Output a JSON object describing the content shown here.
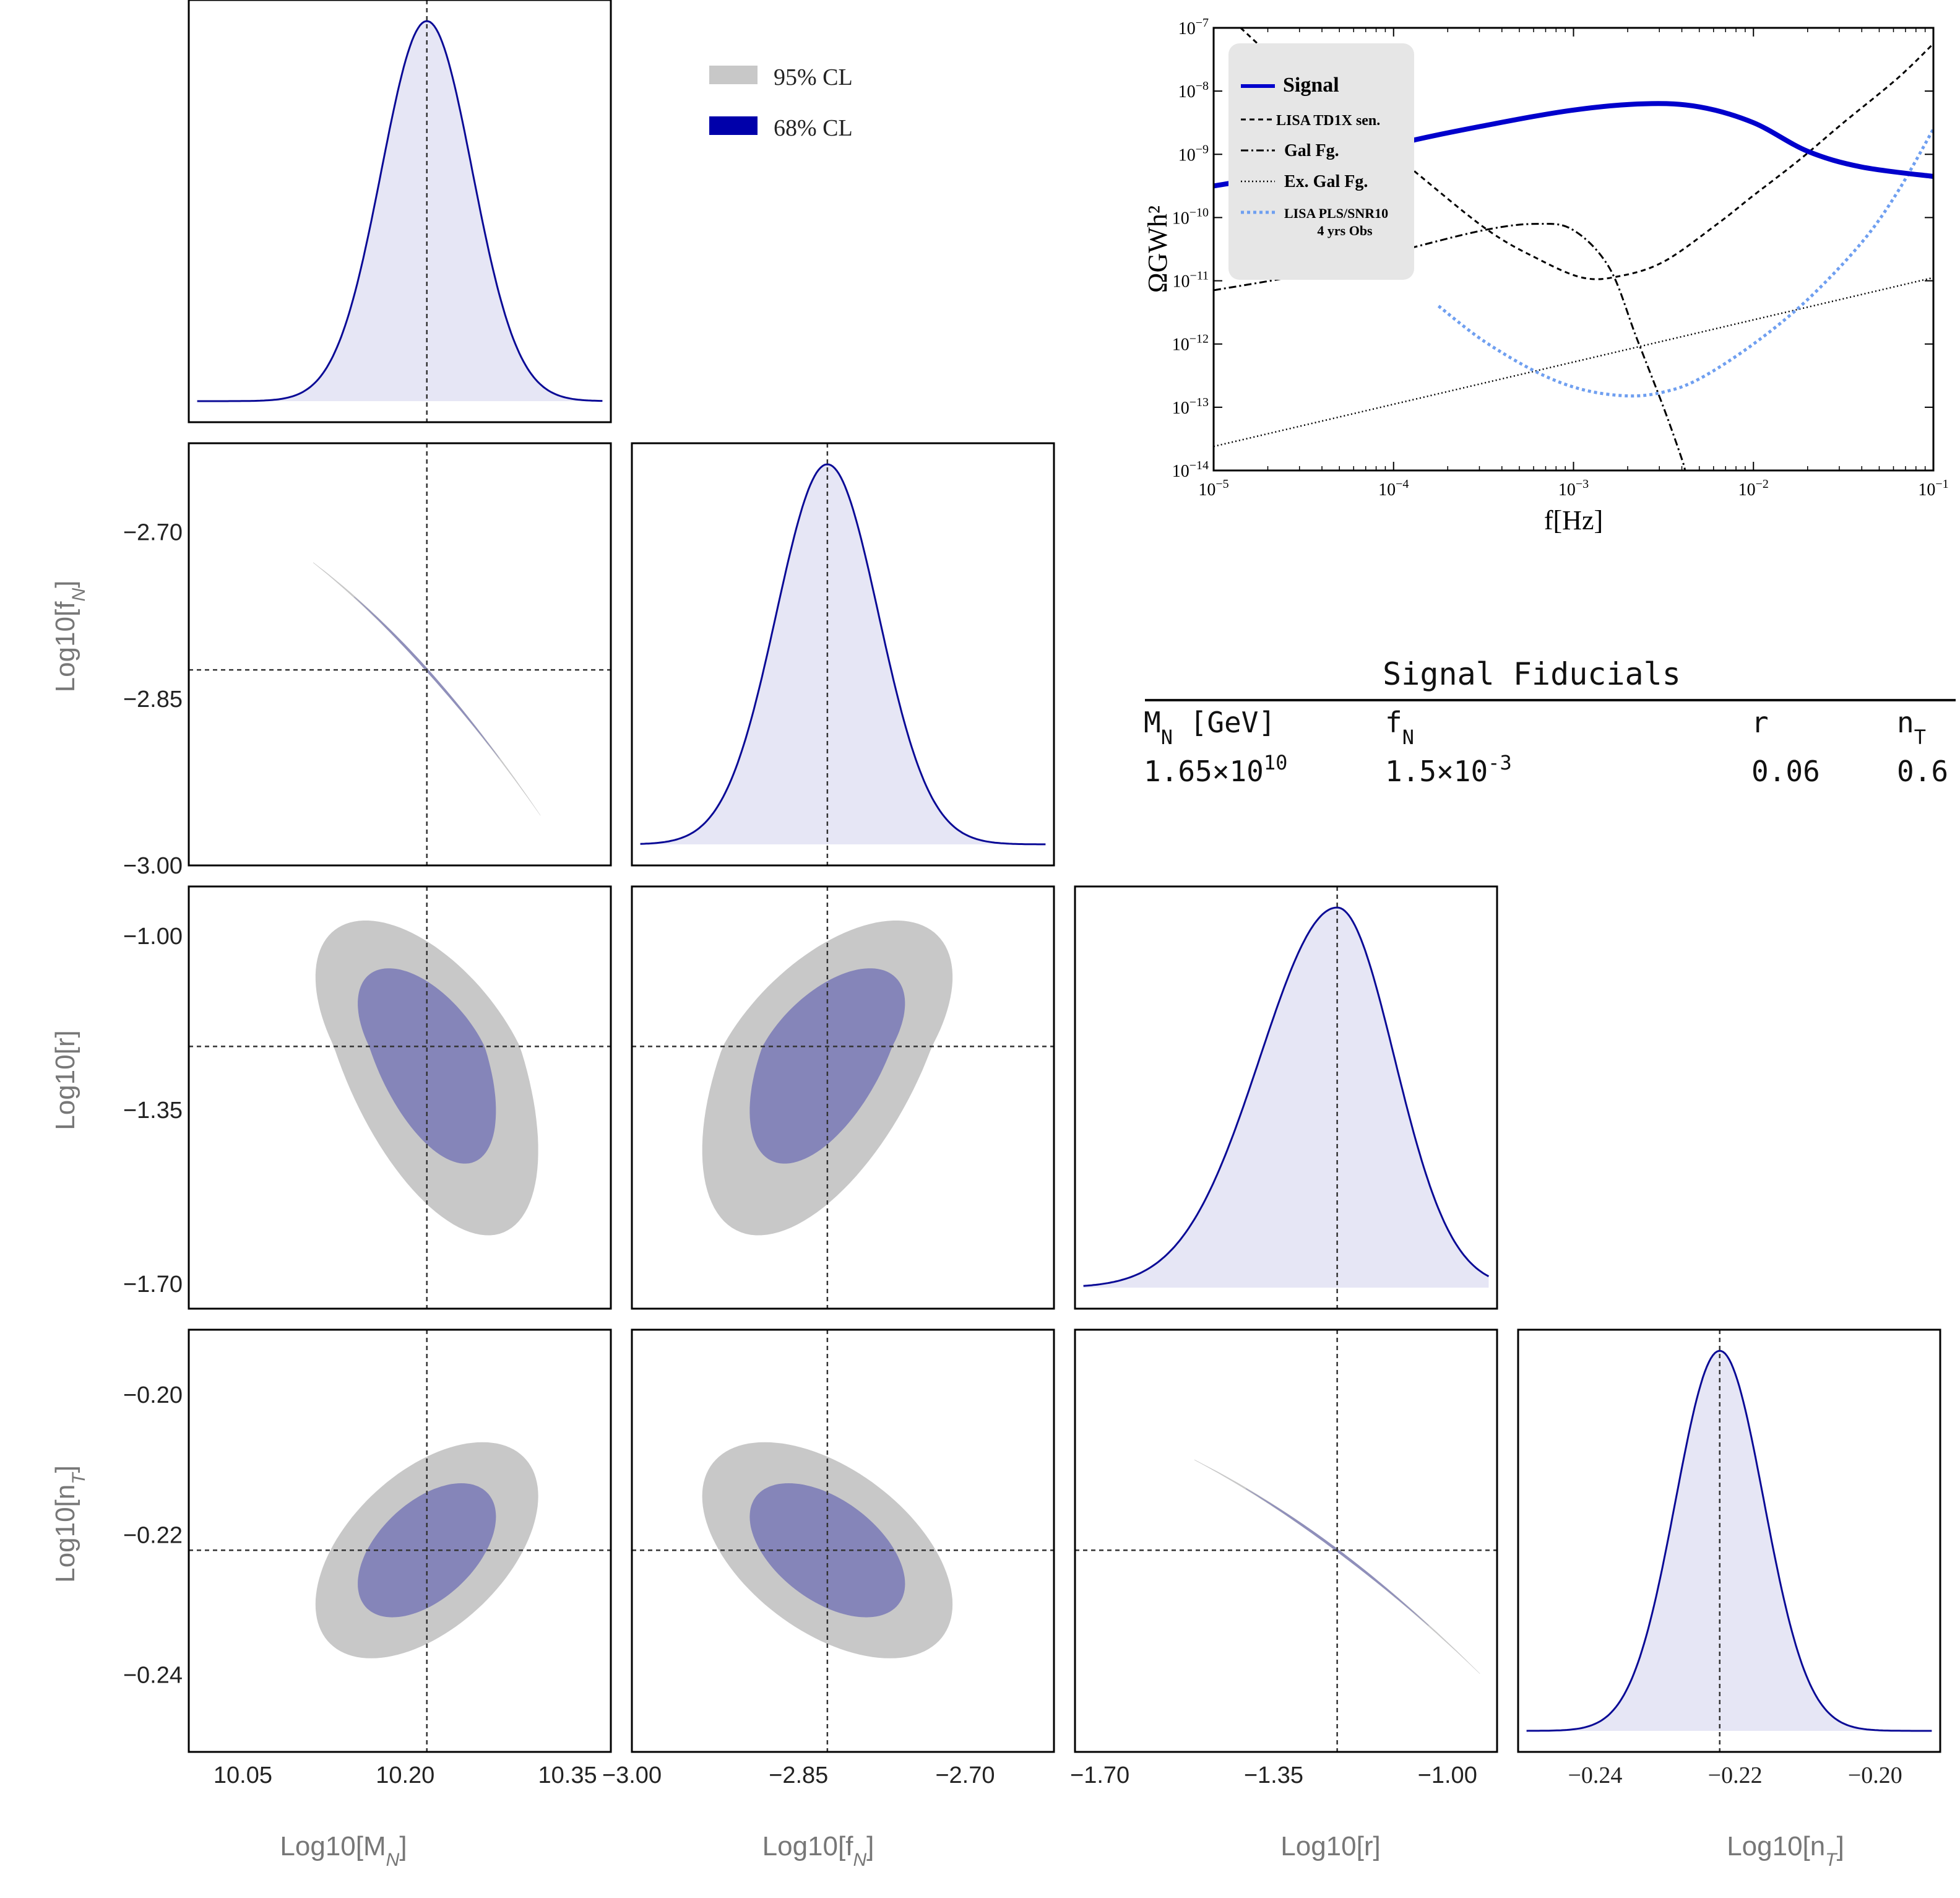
{
  "colors": {
    "ci95": "#c8c8c8",
    "ci68": "#8585b9",
    "ci68_legend": "#0000aa",
    "posterior_line": "#0a0a96",
    "posterior_fill": "#e6e6f5",
    "signal": "#0000cc",
    "pls": "#6f9ff0",
    "axis_label": "#777777"
  },
  "legend": {
    "items": [
      {
        "label": "95% CL",
        "color": "#c8c8c8"
      },
      {
        "label": "68% CL",
        "color": "#0000aa"
      }
    ]
  },
  "params": [
    {
      "axis_label": "Log10[M",
      "axis_sub": "N",
      "axis_suffix": "]",
      "fiducial": 10.22,
      "range": [
        10.0,
        10.39
      ],
      "ticks": [
        10.05,
        10.2,
        10.35
      ],
      "tick_labels": [
        "10.05",
        "10.20",
        "10.35"
      ]
    },
    {
      "axis_label": "Log10[f",
      "axis_sub": "N",
      "axis_suffix": "]",
      "fiducial": -2.824,
      "range": [
        -3.0,
        -2.62
      ],
      "ticks": [
        -3.0,
        -2.85,
        -2.7
      ],
      "tick_labels": [
        "−3.00",
        "−2.85",
        "−2.70"
      ]
    },
    {
      "axis_label": "Log10[r]",
      "axis_sub": "",
      "axis_suffix": "",
      "fiducial": -1.222,
      "range": [
        -1.75,
        -0.9
      ],
      "ticks": [
        -1.7,
        -1.35,
        -1.0
      ],
      "tick_labels": [
        "−1.70",
        "−1.35",
        "−1.00"
      ]
    },
    {
      "axis_label": "Log10[n",
      "axis_sub": "T",
      "axis_suffix": "]",
      "fiducial": -0.2222,
      "range": [
        -0.251,
        -0.1907
      ],
      "ticks": [
        -0.24,
        -0.22,
        -0.2
      ],
      "tick_labels": [
        "−0.24",
        "−0.22",
        "−0.20"
      ]
    }
  ],
  "fiducials_table": {
    "title": "Signal Fiducials",
    "headers": [
      {
        "main": "M",
        "sub": "N",
        "suffix": " [GeV]"
      },
      {
        "main": "f",
        "sub": "N",
        "suffix": ""
      },
      {
        "main": "r",
        "sub": "",
        "suffix": ""
      },
      {
        "main": "n",
        "sub": "T",
        "suffix": ""
      }
    ],
    "values": [
      {
        "main": "1.65×10",
        "sup": "10"
      },
      {
        "main": "1.5×10",
        "sup": "-3"
      },
      {
        "main": "0.06",
        "sup": ""
      },
      {
        "main": "0.6",
        "sup": ""
      }
    ]
  },
  "chart_data": [
    {
      "type": "line",
      "title": "",
      "xlabel": "f[Hz]",
      "ylabel": "ΩGWh²",
      "x_scale": "log",
      "y_scale": "log",
      "xlim": [
        1e-05,
        0.1
      ],
      "ylim": [
        1e-14,
        1e-07
      ],
      "x_ticks": [
        {
          "base": "10",
          "exp": "−5"
        },
        {
          "base": "10",
          "exp": "−4"
        },
        {
          "base": "10",
          "exp": "−3"
        },
        {
          "base": "10",
          "exp": "−2"
        },
        {
          "base": "10",
          "exp": "−1"
        }
      ],
      "y_ticks": [
        {
          "base": "10",
          "exp": "−14"
        },
        {
          "base": "10",
          "exp": "−13"
        },
        {
          "base": "10",
          "exp": "−12"
        },
        {
          "base": "10",
          "exp": "−11"
        },
        {
          "base": "10",
          "exp": "−10"
        },
        {
          "base": "10",
          "exp": "−9"
        },
        {
          "base": "10",
          "exp": "−8"
        },
        {
          "base": "10",
          "exp": "−7"
        }
      ],
      "legend_position": "top-left",
      "series": [
        {
          "name": "Signal",
          "style": "solid-thick",
          "color": "#0000cc",
          "log10_f": [
            -5.0,
            -4.5,
            -4.0,
            -3.5,
            -3.0,
            -2.6,
            -2.3,
            -2.0,
            -1.7,
            -1.4,
            -1.0
          ],
          "log10_omega": [
            -9.5,
            -9.25,
            -8.85,
            -8.55,
            -8.3,
            -8.2,
            -8.25,
            -8.5,
            -8.95,
            -9.2,
            -9.35
          ]
        },
        {
          "name": "LISA TD1X sen.",
          "style": "dashed",
          "color": "#000000",
          "log10_f": [
            -4.85,
            -4.5,
            -4.0,
            -3.5,
            -3.2,
            -2.95,
            -2.75,
            -2.5,
            -2.2,
            -2.0,
            -1.75,
            -1.5,
            -1.2,
            -1.0
          ],
          "log10_omega": [
            -7.0,
            -7.9,
            -9.0,
            -10.15,
            -10.65,
            -10.95,
            -10.93,
            -10.7,
            -10.1,
            -9.65,
            -9.1,
            -8.5,
            -7.8,
            -7.25
          ]
        },
        {
          "name": "Gal Fg.",
          "style": "dash-dot",
          "color": "#000000",
          "log10_f": [
            -5.0,
            -4.5,
            -4.0,
            -3.5,
            -3.2,
            -3.0,
            -2.8,
            -2.65,
            -2.5,
            -2.4,
            -2.38
          ],
          "log10_omega": [
            -11.15,
            -10.9,
            -10.55,
            -10.2,
            -10.1,
            -10.2,
            -10.8,
            -11.9,
            -13.0,
            -13.8,
            -14.0
          ]
        },
        {
          "name": "Ex. Gal Fg.",
          "style": "dotted",
          "color": "#000000",
          "log10_f": [
            -5.0,
            -1.0
          ],
          "log10_omega": [
            -13.62,
            -10.95
          ]
        },
        {
          "name": "LISA PLS/SNR10",
          "name_line2": "4 yrs Obs",
          "style": "dotted-thick",
          "color": "#6f9ff0",
          "log10_f": [
            -3.75,
            -3.5,
            -3.2,
            -2.95,
            -2.7,
            -2.5,
            -2.3,
            -2.0,
            -1.7,
            -1.4,
            -1.2,
            -1.0
          ],
          "log10_omega": [
            -11.4,
            -11.95,
            -12.45,
            -12.72,
            -12.82,
            -12.76,
            -12.55,
            -12.0,
            -11.3,
            -10.4,
            -9.6,
            -8.6
          ]
        }
      ]
    }
  ]
}
